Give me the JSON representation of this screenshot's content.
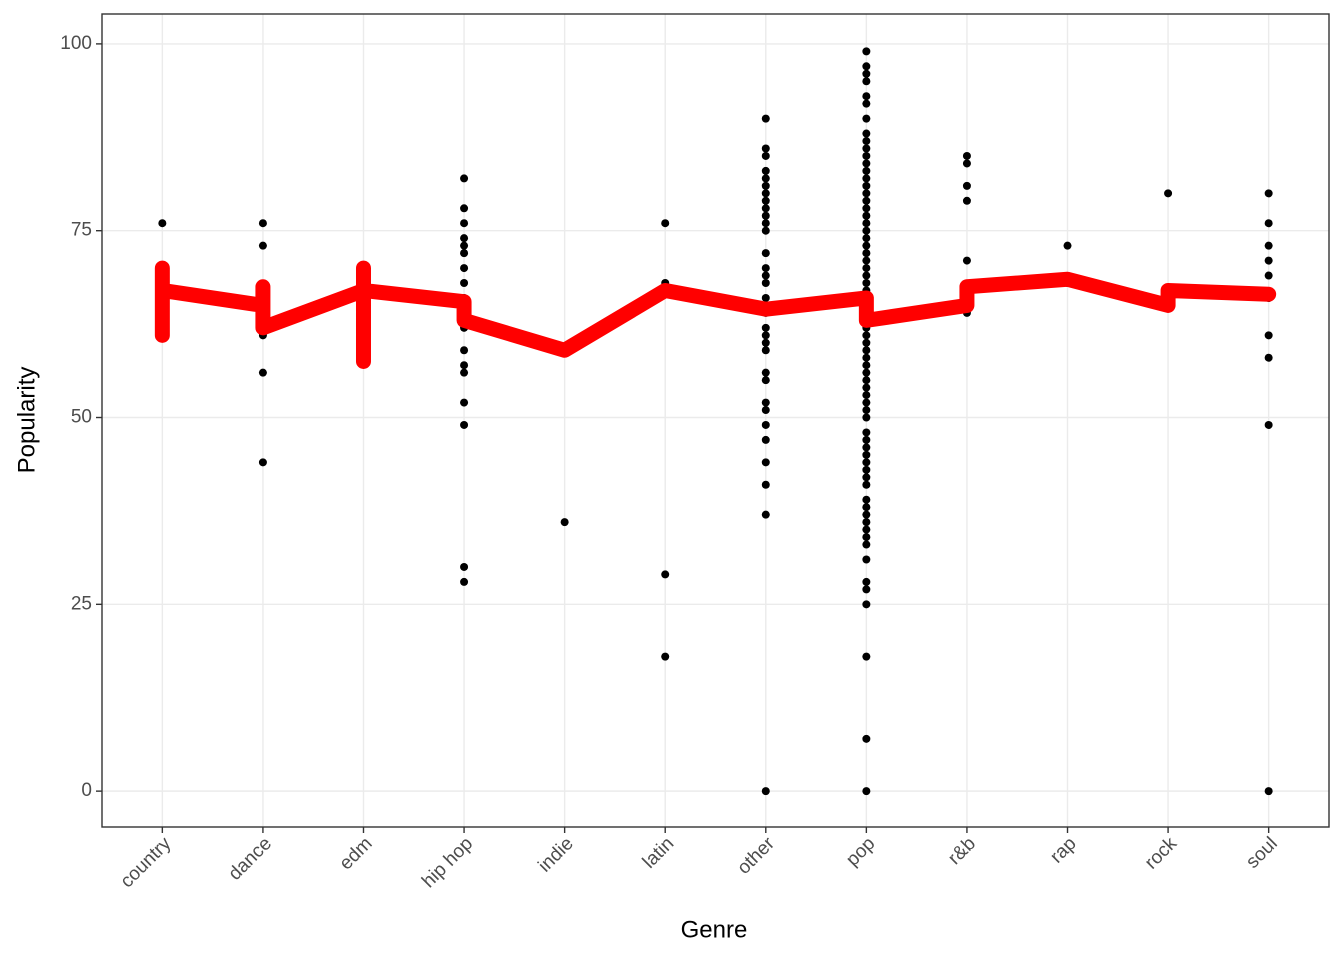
{
  "chart_data": {
    "type": "scatter-line",
    "x_label": "Genre",
    "y_label": "Popularity",
    "categories": [
      "country",
      "dance",
      "edm",
      "hip hop",
      "indie",
      "latin",
      "other",
      "pop",
      "r&b",
      "rap",
      "rock",
      "soul"
    ],
    "point_color": "#000000",
    "point_values": [
      [
        76,
        70,
        68,
        66,
        64,
        61
      ],
      [
        76,
        73,
        67,
        65,
        61,
        56,
        44
      ],
      [
        70,
        67,
        65,
        62,
        58
      ],
      [
        82,
        78,
        76,
        74,
        73,
        72,
        70,
        68,
        66,
        64,
        62,
        59,
        57,
        56,
        52,
        49,
        30,
        28
      ],
      [
        59,
        36
      ],
      [
        76,
        68,
        29,
        18
      ],
      [
        90,
        86,
        85,
        83,
        82,
        81,
        80,
        79,
        78,
        77,
        76,
        75,
        72,
        70,
        69,
        68,
        66,
        64,
        62,
        61,
        60,
        59,
        56,
        55,
        52,
        51,
        49,
        47,
        44,
        41,
        37,
        0
      ],
      [
        99,
        97,
        96,
        95,
        93,
        92,
        90,
        88,
        87,
        86,
        85,
        84,
        83,
        82,
        81,
        80,
        79,
        78,
        77,
        76,
        75,
        74,
        73,
        72,
        71,
        70,
        69,
        68,
        67,
        66,
        65,
        64,
        63,
        62,
        61,
        60,
        59,
        58,
        57,
        56,
        55,
        54,
        53,
        52,
        51,
        50,
        48,
        47,
        46,
        45,
        44,
        43,
        42,
        41,
        39,
        38,
        37,
        36,
        35,
        34,
        33,
        31,
        28,
        27,
        25,
        18,
        7,
        0
      ],
      [
        85,
        84,
        81,
        79,
        71,
        67,
        66,
        65,
        64
      ],
      [
        73,
        68
      ],
      [
        80,
        67,
        66,
        65
      ],
      [
        80,
        76,
        73,
        71,
        69,
        66,
        61,
        58,
        49,
        0
      ]
    ],
    "line_color": "#ff0000",
    "line_categories": [
      "country",
      "country",
      "country",
      "dance",
      "dance",
      "dance",
      "edm",
      "edm",
      "edm",
      "edm",
      "hip hop",
      "hip hop",
      "indie",
      "latin",
      "other",
      "pop",
      "pop",
      "r&b",
      "r&b",
      "rap",
      "rock",
      "rock",
      "soul"
    ],
    "line_values": [
      61,
      70,
      67,
      65,
      67.5,
      62,
      67,
      70,
      57.5,
      67,
      65.5,
      63,
      59,
      67,
      64.5,
      66,
      63,
      65,
      67.5,
      68.5,
      65,
      67,
      66.5
    ],
    "ylim": [
      -4.8,
      104
    ],
    "yticks": [
      0,
      25,
      50,
      75,
      100
    ],
    "grid": true
  }
}
